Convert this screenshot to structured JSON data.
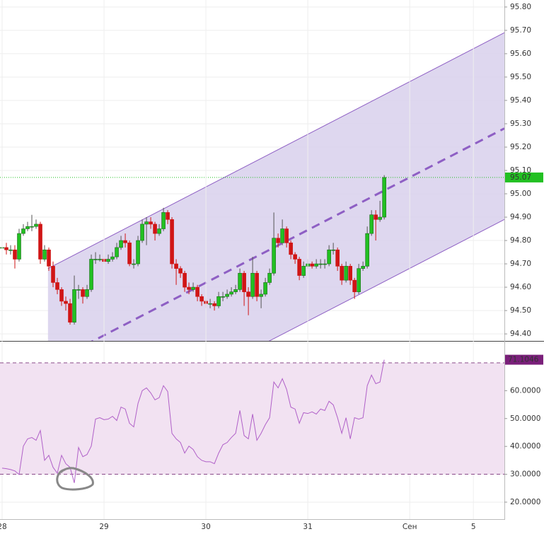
{
  "chart_data": [
    {
      "type": "candlestick",
      "x": [
        0,
        1,
        2,
        3,
        4,
        5,
        6,
        7,
        8,
        9,
        10,
        11,
        12,
        13,
        14,
        15,
        16,
        17,
        18,
        19,
        20,
        21,
        22,
        23,
        24,
        25,
        26,
        27,
        28,
        29,
        30,
        31,
        32,
        33,
        34,
        35,
        36,
        37,
        38,
        39,
        40,
        41,
        42,
        43,
        44,
        45,
        46,
        47,
        48,
        49,
        50,
        51,
        52,
        53,
        54,
        55,
        56,
        57,
        58,
        59,
        60,
        61,
        62,
        63,
        64,
        65,
        66,
        67,
        68,
        69,
        70,
        71,
        72,
        73,
        74,
        75,
        76,
        77,
        78,
        79,
        80,
        81,
        82,
        83,
        84,
        85,
        86,
        87,
        88,
        89,
        90
      ],
      "open": [
        94.77,
        94.77,
        94.76,
        94.76,
        94.72,
        94.83,
        94.85,
        94.86,
        94.86,
        94.87,
        94.72,
        94.76,
        94.69,
        94.62,
        94.59,
        94.54,
        94.53,
        94.45,
        94.59,
        94.59,
        94.56,
        94.59,
        94.72,
        94.72,
        94.72,
        94.71,
        94.72,
        94.73,
        94.77,
        94.8,
        94.79,
        94.7,
        94.7,
        94.8,
        94.87,
        94.88,
        94.87,
        94.83,
        94.85,
        94.92,
        94.89,
        94.7,
        94.68,
        94.66,
        94.6,
        94.59,
        94.6,
        94.56,
        94.54,
        94.53,
        94.53,
        94.52,
        94.56,
        94.56,
        94.57,
        94.58,
        94.59,
        94.66,
        94.58,
        94.56,
        94.66,
        94.56,
        94.57,
        94.62,
        94.66,
        94.81,
        94.79,
        94.85,
        94.79,
        94.74,
        94.72,
        94.65,
        94.69,
        94.7,
        94.69,
        94.7,
        94.7,
        94.7,
        94.76,
        94.76,
        94.69,
        94.63,
        94.69,
        94.63,
        94.58,
        94.68,
        94.69,
        94.83,
        94.91,
        94.89,
        94.9
      ],
      "high": [
        94.79,
        94.79,
        94.78,
        94.78,
        94.85,
        94.87,
        94.88,
        94.91,
        94.89,
        94.88,
        94.78,
        94.77,
        94.71,
        94.64,
        94.6,
        94.56,
        94.55,
        94.65,
        94.61,
        94.6,
        94.61,
        94.74,
        94.75,
        94.74,
        94.73,
        94.74,
        94.75,
        94.79,
        94.82,
        94.83,
        94.8,
        94.72,
        94.82,
        94.89,
        94.9,
        94.9,
        94.88,
        94.87,
        94.94,
        94.93,
        94.9,
        94.72,
        94.69,
        94.67,
        94.62,
        94.62,
        94.61,
        94.57,
        94.55,
        94.55,
        94.54,
        94.58,
        94.58,
        94.59,
        94.6,
        94.61,
        94.68,
        94.67,
        94.6,
        94.73,
        94.67,
        94.59,
        94.64,
        94.68,
        94.92,
        94.83,
        94.89,
        94.86,
        94.8,
        94.75,
        94.73,
        94.71,
        94.72,
        94.71,
        94.72,
        94.72,
        94.72,
        94.78,
        94.79,
        94.77,
        94.7,
        94.71,
        94.7,
        94.64,
        94.7,
        94.71,
        94.86,
        94.93,
        94.93,
        94.97,
        95.08
      ],
      "low": [
        94.75,
        94.74,
        94.74,
        94.68,
        94.71,
        94.82,
        94.84,
        94.84,
        94.85,
        94.7,
        94.71,
        94.67,
        94.6,
        94.57,
        94.52,
        94.5,
        94.44,
        94.44,
        94.55,
        94.53,
        94.55,
        94.58,
        94.7,
        94.71,
        94.7,
        94.7,
        94.71,
        94.72,
        94.76,
        94.77,
        94.69,
        94.68,
        94.69,
        94.79,
        94.78,
        94.85,
        94.8,
        94.82,
        94.84,
        94.87,
        94.68,
        94.61,
        94.64,
        94.58,
        94.57,
        94.58,
        94.54,
        94.52,
        94.51,
        94.51,
        94.5,
        94.51,
        94.54,
        94.55,
        94.56,
        94.57,
        94.58,
        94.52,
        94.48,
        94.55,
        94.54,
        94.51,
        94.56,
        94.61,
        94.65,
        94.77,
        94.78,
        94.77,
        94.72,
        94.7,
        94.63,
        94.64,
        94.68,
        94.68,
        94.68,
        94.68,
        94.68,
        94.69,
        94.74,
        94.67,
        94.61,
        94.62,
        94.61,
        94.55,
        94.57,
        94.67,
        94.68,
        94.82,
        94.8,
        94.88,
        94.89
      ],
      "close": [
        94.77,
        94.76,
        94.76,
        94.72,
        94.83,
        94.85,
        94.86,
        94.86,
        94.87,
        94.72,
        94.76,
        94.69,
        94.62,
        94.59,
        94.54,
        94.53,
        94.45,
        94.59,
        94.59,
        94.56,
        94.59,
        94.72,
        94.72,
        94.72,
        94.71,
        94.72,
        94.73,
        94.77,
        94.8,
        94.79,
        94.7,
        94.7,
        94.8,
        94.87,
        94.88,
        94.87,
        94.83,
        94.85,
        94.92,
        94.89,
        94.7,
        94.68,
        94.66,
        94.6,
        94.59,
        94.6,
        94.56,
        94.54,
        94.53,
        94.53,
        94.52,
        94.56,
        94.56,
        94.57,
        94.58,
        94.59,
        94.66,
        94.58,
        94.56,
        94.66,
        94.56,
        94.57,
        94.62,
        94.66,
        94.81,
        94.79,
        94.85,
        94.79,
        94.74,
        94.72,
        94.65,
        94.69,
        94.7,
        94.69,
        94.7,
        94.7,
        94.7,
        94.76,
        94.76,
        94.69,
        94.63,
        94.69,
        94.63,
        94.58,
        94.68,
        94.69,
        94.83,
        94.91,
        94.89,
        94.9,
        95.07
      ],
      "up_color": "#22c022",
      "down_color": "#d01515",
      "last_label": "95.07",
      "last_color": "#22c022",
      "channel": {
        "x": [
          10.8,
          118.3
        ],
        "upper": [
          94.68,
          95.69
        ],
        "middle": [
          94.27,
          95.28
        ],
        "lower": [
          93.88,
          94.89
        ],
        "color": "#8e5fc4",
        "fill": "#d8d0ec"
      },
      "xlim": [
        -0.5,
        118.3
      ],
      "xticks": [
        {
          "value": 0,
          "label": "28"
        },
        {
          "value": 24,
          "label": "29"
        },
        {
          "value": 48,
          "label": "30"
        },
        {
          "value": 72,
          "label": "31"
        },
        {
          "value": 96,
          "label": "Сен"
        },
        {
          "value": 111,
          "label": "5"
        }
      ],
      "ylim": [
        94.37,
        95.83
      ],
      "yticks": [
        {
          "value": 94.4,
          "label": "94.40"
        },
        {
          "value": 94.5,
          "label": "94.50"
        },
        {
          "value": 94.6,
          "label": "94.60"
        },
        {
          "value": 94.7,
          "label": "94.70"
        },
        {
          "value": 94.8,
          "label": "94.80"
        },
        {
          "value": 94.9,
          "label": "94.90"
        },
        {
          "value": 95.0,
          "label": "95.00"
        },
        {
          "value": 95.1,
          "label": "95.10"
        },
        {
          "value": 95.2,
          "label": "95.20"
        },
        {
          "value": 95.3,
          "label": "95.30"
        },
        {
          "value": 95.4,
          "label": "95.40"
        },
        {
          "value": 95.5,
          "label": "95.50"
        },
        {
          "value": 95.6,
          "label": "95.60"
        },
        {
          "value": 95.7,
          "label": "95.70"
        },
        {
          "value": 95.8,
          "label": "95.80"
        }
      ],
      "grid": true
    },
    {
      "type": "line",
      "x": [
        0,
        1,
        2,
        3,
        4,
        5,
        6,
        7,
        8,
        9,
        10,
        11,
        12,
        13,
        14,
        15,
        16,
        17,
        18,
        19,
        20,
        21,
        22,
        23,
        24,
        25,
        26,
        27,
        28,
        29,
        30,
        31,
        32,
        33,
        34,
        35,
        36,
        37,
        38,
        39,
        40,
        41,
        42,
        43,
        44,
        45,
        46,
        47,
        48,
        49,
        50,
        51,
        52,
        53,
        54,
        55,
        56,
        57,
        58,
        59,
        60,
        61,
        62,
        63,
        64,
        65,
        66,
        67,
        68,
        69,
        70,
        71,
        72,
        73,
        74,
        75,
        76,
        77,
        78,
        79,
        80,
        81,
        82,
        83,
        84,
        85,
        86,
        87,
        88,
        89,
        90
      ],
      "values": [
        32.2,
        32.0,
        31.7,
        31.2,
        29.9,
        40.1,
        42.7,
        43.2,
        42.2,
        45.7,
        35.0,
        36.8,
        32.5,
        30.4,
        36.8,
        33.8,
        32.5,
        26.9,
        39.6,
        36.3,
        37.1,
        40.1,
        49.8,
        50.3,
        49.6,
        49.8,
        50.8,
        49.3,
        54.1,
        53.4,
        48.3,
        47.0,
        55.4,
        60.0,
        61.0,
        59.2,
        56.7,
        57.5,
        61.8,
        59.7,
        44.7,
        42.7,
        41.4,
        37.6,
        40.1,
        38.9,
        36.3,
        35.0,
        34.5,
        34.5,
        33.8,
        37.6,
        40.6,
        41.4,
        43.2,
        44.7,
        52.9,
        43.9,
        42.7,
        51.6,
        42.2,
        44.7,
        47.8,
        50.3,
        63.1,
        61.0,
        64.3,
        60.5,
        54.1,
        53.4,
        48.3,
        52.1,
        51.8,
        52.4,
        51.6,
        53.4,
        52.9,
        56.2,
        54.9,
        50.3,
        44.7,
        50.3,
        42.7,
        50.3,
        49.8,
        50.3,
        61.8,
        65.6,
        62.5,
        63.1,
        71.1046
      ],
      "color": "#b060c8",
      "last_label": "71.1046",
      "last_color": "#7a1f7a",
      "levels": [
        70,
        30
      ],
      "band_color": "#f2e2f2",
      "xlim": [
        -0.5,
        118.3
      ],
      "ylim": [
        13.9,
        77.6
      ],
      "yticks": [
        {
          "value": 20,
          "label": "20.0000"
        },
        {
          "value": 30,
          "label": "30.0000"
        },
        {
          "value": 40,
          "label": "40.0000"
        },
        {
          "value": 50,
          "label": "50.0000"
        },
        {
          "value": 60,
          "label": "60.0000"
        }
      ],
      "grid": true
    }
  ]
}
